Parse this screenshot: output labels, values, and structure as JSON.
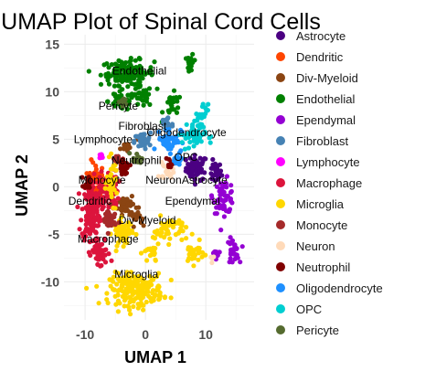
{
  "chart_data": {
    "type": "scatter",
    "title": "UMAP Plot of Spinal Cord Cells",
    "xlabel": "UMAP 1",
    "ylabel": "UMAP 2",
    "xlim": [
      -13.5,
      18
    ],
    "ylim": [
      -14,
      16
    ],
    "xticks": [
      -10,
      0,
      10
    ],
    "yticks": [
      15,
      10,
      5,
      0,
      -5,
      -10
    ],
    "grid": true,
    "legend_position": "right",
    "series": [
      {
        "name": "Astrocyte",
        "color": "#4b0082",
        "clusters": [
          [
            8.5,
            2.0,
            1.6,
            1.2,
            55
          ],
          [
            11.5,
            1.5,
            1.0,
            1.0,
            25
          ]
        ]
      },
      {
        "name": "Dendritic",
        "color": "#ff4500",
        "clusters": [
          [
            -8.2,
            0.0,
            1.2,
            2.4,
            60
          ]
        ]
      },
      {
        "name": "Div-Myeloid",
        "color": "#8b4513",
        "clusters": [
          [
            -3.2,
            -1.8,
            1.2,
            1.0,
            45
          ],
          [
            -1.5,
            -3.2,
            0.8,
            0.8,
            20
          ],
          [
            -0.8,
            5.2,
            0.6,
            0.5,
            10
          ],
          [
            -3.5,
            4.2,
            0.6,
            0.5,
            10
          ]
        ]
      },
      {
        "name": "Endothelial",
        "color": "#008000",
        "clusters": [
          [
            -3.0,
            12.0,
            4.0,
            1.2,
            130
          ],
          [
            -4.0,
            9.0,
            2.0,
            0.9,
            40
          ],
          [
            -0.5,
            9.5,
            1.5,
            1.0,
            30
          ],
          [
            4.5,
            8.5,
            1.4,
            1.2,
            25
          ],
          [
            7.5,
            13.0,
            0.5,
            0.9,
            20
          ]
        ]
      },
      {
        "name": "Ependymal",
        "color": "#9400d3",
        "clusters": [
          [
            13.0,
            -1.0,
            1.6,
            1.6,
            60
          ],
          [
            14.5,
            -6.8,
            0.9,
            1.2,
            30
          ],
          [
            11.5,
            -7.0,
            0.6,
            0.5,
            10
          ]
        ]
      },
      {
        "name": "Fibroblast",
        "color": "#4682b4",
        "clusters": [
          [
            -0.5,
            4.8,
            1.2,
            0.8,
            35
          ],
          [
            3.5,
            6.6,
            1.0,
            0.9,
            25
          ]
        ]
      },
      {
        "name": "Lymphocyte",
        "color": "#ff00ff",
        "clusters": [
          [
            -7.2,
            3.2,
            0.4,
            0.3,
            8
          ]
        ]
      },
      {
        "name": "Macrophage",
        "color": "#dc143c",
        "clusters": [
          [
            -9.0,
            -2.5,
            1.4,
            3.0,
            150
          ],
          [
            -6.0,
            -0.5,
            1.4,
            2.0,
            70
          ],
          [
            -7.5,
            -7.0,
            1.5,
            1.5,
            50
          ]
        ]
      },
      {
        "name": "Microglia",
        "color": "#ffd700",
        "clusters": [
          [
            -1.5,
            -10.8,
            4.0,
            1.5,
            200
          ],
          [
            -3.8,
            -4.8,
            1.5,
            1.2,
            60
          ],
          [
            4.0,
            -4.5,
            2.5,
            1.2,
            45
          ],
          [
            8.0,
            -7.0,
            1.5,
            1.0,
            30
          ],
          [
            -5.5,
            0.5,
            0.8,
            2.0,
            40
          ],
          [
            1.0,
            -7.0,
            1.2,
            1.0,
            25
          ]
        ]
      },
      {
        "name": "Monocyte",
        "color": "#a52a2a",
        "clusters": [
          [
            -6.0,
            -3.5,
            1.0,
            1.2,
            40
          ],
          [
            -4.5,
            3.0,
            0.6,
            0.5,
            10
          ]
        ]
      },
      {
        "name": "Neuron",
        "color": "#ffdab9",
        "clusters": [
          [
            3.5,
            1.5,
            1.0,
            0.8,
            20
          ],
          [
            11.0,
            -7.5,
            0.3,
            0.4,
            4
          ]
        ]
      },
      {
        "name": "Neutrophil",
        "color": "#800000",
        "clusters": [
          [
            -3.5,
            2.0,
            0.8,
            0.6,
            25
          ],
          [
            -9.5,
            0.5,
            0.6,
            0.7,
            15
          ],
          [
            4.0,
            2.5,
            0.6,
            0.5,
            10
          ]
        ]
      },
      {
        "name": "Oligodendrocyte",
        "color": "#1e90ff",
        "clusters": [
          [
            4.0,
            5.0,
            1.8,
            1.2,
            50
          ],
          [
            5.0,
            2.5,
            0.8,
            0.8,
            15
          ]
        ]
      },
      {
        "name": "OPC",
        "color": "#00ced1",
        "clusters": [
          [
            8.0,
            5.5,
            1.8,
            1.5,
            50
          ],
          [
            9.5,
            7.8,
            0.8,
            0.8,
            15
          ]
        ]
      },
      {
        "name": "Pericyte",
        "color": "#556b2f",
        "clusters": [
          [
            -3.8,
            8.8,
            0.6,
            0.5,
            12
          ],
          [
            -1.5,
            3.0,
            0.8,
            0.6,
            15
          ]
        ]
      }
    ],
    "annotations": [
      {
        "text": "Endothelial",
        "x": -1.0,
        "y": 12.2
      },
      {
        "text": "Pericyte",
        "x": -4.5,
        "y": 8.5
      },
      {
        "text": "Fibroblast",
        "x": -0.5,
        "y": 6.4
      },
      {
        "text": "Oligodendrocyte",
        "x": 6.8,
        "y": 5.7
      },
      {
        "text": "Lymphocyte",
        "x": -7.0,
        "y": 5.0
      },
      {
        "text": "Neutrophil",
        "x": -1.5,
        "y": 2.8
      },
      {
        "text": "OPC",
        "x": 6.7,
        "y": 3.1
      },
      {
        "text": "Monocyte",
        "x": -7.2,
        "y": 0.7
      },
      {
        "text": "Neuron",
        "x": 3.0,
        "y": 0.7
      },
      {
        "text": "Astrocyte",
        "x": 9.8,
        "y": 0.7
      },
      {
        "text": "Dendritic",
        "x": -9.2,
        "y": -1.5
      },
      {
        "text": "Ependymal",
        "x": 7.8,
        "y": -1.5
      },
      {
        "text": "Div-Myeloid",
        "x": 0.3,
        "y": -3.5
      },
      {
        "text": "Macrophage",
        "x": -6.2,
        "y": -5.5
      },
      {
        "text": "Microglia",
        "x": -1.5,
        "y": -9.2
      }
    ]
  }
}
